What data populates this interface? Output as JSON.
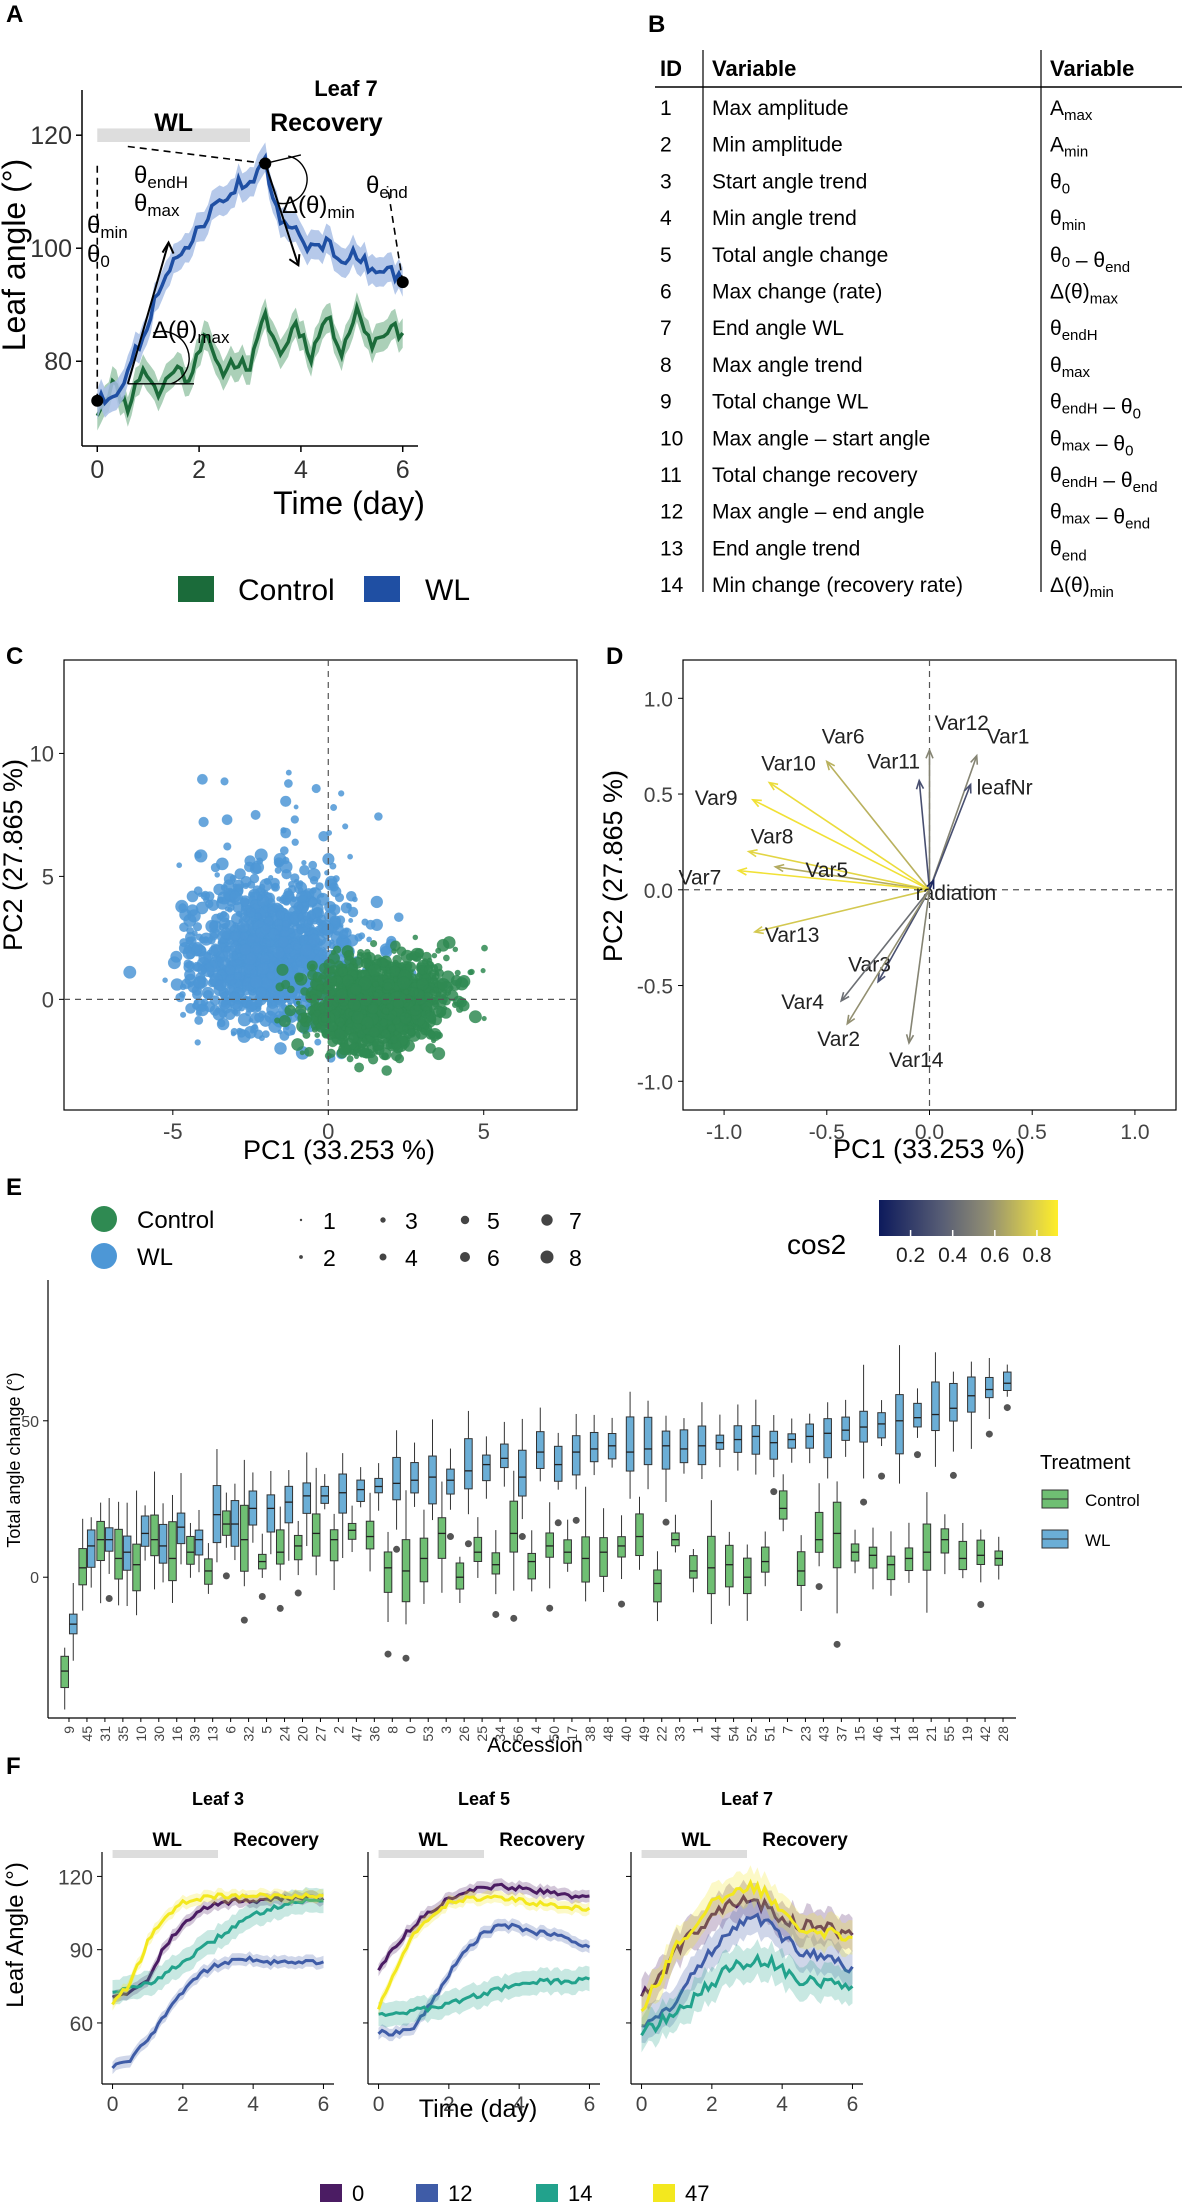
{
  "colors": {
    "control": "#1b6b3a",
    "wl": "#1f4fa3",
    "control_band": "#9cc8ab",
    "wl_band": "#a9c0e6",
    "pca_control": "#2f8a52",
    "pca_wl": "#4d97d6",
    "box_control": "#6fbf73",
    "box_wl": "#6baed6",
    "wl_bar": "#dddddd",
    "g0": "#4b1c63",
    "g12": "#3f5ca7",
    "g14": "#22a28c",
    "g47": "#f3e81e"
  },
  "panel_a": {
    "label": "A",
    "chart_data": {
      "type": "line",
      "title": "Leaf 7",
      "xlabel": "Time (day)",
      "ylabel": "Leaf angle (°)",
      "xlim": [
        -0.3,
        6.3
      ],
      "ylim": [
        65,
        128
      ],
      "xticks": [
        "0",
        "2",
        "4",
        "6"
      ],
      "yticks": [
        "80",
        "100",
        "120"
      ],
      "phase_labels": [
        "WL",
        "Recovery"
      ],
      "series": [
        {
          "name": "Control",
          "x": [
            0,
            0.3,
            0.6,
            0.9,
            1.2,
            1.5,
            1.8,
            2.1,
            2.4,
            2.7,
            3.0,
            3.3,
            3.6,
            3.9,
            4.2,
            4.5,
            4.8,
            5.1,
            5.4,
            5.7,
            6.0
          ],
          "y": [
            71,
            76,
            72,
            79,
            74,
            79,
            77,
            85,
            78,
            80,
            79,
            88,
            81,
            87,
            81,
            88,
            82,
            89,
            83,
            86,
            85
          ]
        },
        {
          "name": "WL",
          "x": [
            0,
            0.3,
            0.6,
            0.9,
            1.2,
            1.5,
            1.8,
            2.1,
            2.4,
            2.7,
            3.0,
            3.3,
            3.6,
            3.9,
            4.2,
            4.5,
            4.8,
            5.1,
            5.4,
            5.7,
            6.0
          ],
          "y": [
            73,
            74,
            78,
            85,
            92,
            97,
            101,
            105,
            108,
            111,
            112,
            115,
            104,
            103,
            100,
            101,
            98,
            99,
            96,
            97,
            94
          ]
        }
      ],
      "annotations": [
        "θmin",
        "θ0",
        "θendH",
        "θmax",
        "Δ(θ)max",
        "Δ(θ)min",
        "θend"
      ],
      "legend": [
        "Control",
        "WL"
      ],
      "legend_position": "bottom"
    }
  },
  "panel_b": {
    "label": "B",
    "headers": [
      "ID",
      "Variable",
      "Variable"
    ],
    "rows": [
      {
        "id": "1",
        "name": "Max amplitude",
        "symbol": "Amax"
      },
      {
        "id": "2",
        "name": "Min amplitude",
        "symbol": "Amin"
      },
      {
        "id": "3",
        "name": "Start angle trend",
        "symbol": "θ0"
      },
      {
        "id": "4",
        "name": "Min angle trend",
        "symbol": "θmin"
      },
      {
        "id": "5",
        "name": "Total angle change",
        "symbol": "θ0 – θend"
      },
      {
        "id": "6",
        "name": "Max change (rate)",
        "symbol": "Δ(θ)max"
      },
      {
        "id": "7",
        "name": "End angle WL",
        "symbol": "θendH"
      },
      {
        "id": "8",
        "name": "Max angle trend",
        "symbol": "θmax"
      },
      {
        "id": "9",
        "name": "Total change WL",
        "symbol": "θendH – θ0"
      },
      {
        "id": "10",
        "name": "Max angle – start angle",
        "symbol": "θmax – θ0"
      },
      {
        "id": "11",
        "name": "Total change recovery",
        "symbol": "θendH – θend"
      },
      {
        "id": "12",
        "name": "Max angle – end angle",
        "symbol": "θmax – θend"
      },
      {
        "id": "13",
        "name": "End angle trend",
        "symbol": "θend"
      },
      {
        "id": "14",
        "name": "Min change (recovery rate)",
        "symbol": "Δ(θ)min"
      }
    ]
  },
  "panel_c": {
    "label": "C",
    "chart_data": {
      "type": "scatter",
      "xlabel": "PC1 (33.253 %)",
      "ylabel": "PC2 (27.865 %)",
      "xlim": [
        -8.5,
        8
      ],
      "ylim": [
        -4.5,
        13.8
      ],
      "xticks": [
        "-5",
        "0",
        "5"
      ],
      "yticks": [
        "0",
        "5",
        "10"
      ],
      "series": [
        {
          "name": "Control",
          "center": [
            1.6,
            -0.3
          ],
          "spread": [
            1.8,
            1.5
          ],
          "approx_points": 2500
        },
        {
          "name": "WL",
          "center": [
            -1.8,
            1.8
          ],
          "spread": [
            2.3,
            2.5
          ],
          "approx_points": 2500
        }
      ],
      "legend": [
        "Control",
        "WL"
      ],
      "size_legend": [
        "1",
        "2",
        "3",
        "4",
        "5",
        "6",
        "7",
        "8"
      ]
    }
  },
  "panel_d": {
    "label": "D",
    "chart_data": {
      "type": "scatter",
      "subtype": "pca-variable-loadings",
      "xlabel": "PC1 (33.253 %)",
      "ylabel": "PC2 (27.865 %)",
      "xlim": [
        -1.2,
        1.2
      ],
      "ylim": [
        -1.15,
        1.2
      ],
      "xticks": [
        "-1.0",
        "-0.5",
        "0.0",
        "0.5",
        "1.0"
      ],
      "yticks": [
        "-1.0",
        "-0.5",
        "0.0",
        "0.5",
        "1.0"
      ],
      "colorbar_label": "cos2",
      "colorbar_ticks": [
        "0.2",
        "0.4",
        "0.6",
        "0.8"
      ],
      "vectors": [
        {
          "name": "Var1",
          "x": 0.23,
          "y": 0.7,
          "cos2": 0.55
        },
        {
          "name": "Var12",
          "x": 0.0,
          "y": 0.73,
          "cos2": 0.55
        },
        {
          "name": "Var11",
          "x": -0.05,
          "y": 0.57,
          "cos2": 0.3
        },
        {
          "name": "leafNr",
          "x": 0.2,
          "y": 0.55,
          "cos2": 0.3
        },
        {
          "name": "Var6",
          "x": -0.5,
          "y": 0.67,
          "cos2": 0.72
        },
        {
          "name": "Var10",
          "x": -0.78,
          "y": 0.56,
          "cos2": 0.88
        },
        {
          "name": "Var9",
          "x": -0.86,
          "y": 0.47,
          "cos2": 0.9
        },
        {
          "name": "Var8",
          "x": -0.88,
          "y": 0.2,
          "cos2": 0.85
        },
        {
          "name": "Var5",
          "x": -0.75,
          "y": 0.12,
          "cos2": 0.7
        },
        {
          "name": "Var7",
          "x": -0.93,
          "y": 0.1,
          "cos2": 0.9
        },
        {
          "name": "Var13",
          "x": -0.85,
          "y": -0.22,
          "cos2": 0.8
        },
        {
          "name": "radiation",
          "x": 0.02,
          "y": 0.05,
          "cos2": 0.1
        },
        {
          "name": "Var3",
          "x": -0.25,
          "y": -0.48,
          "cos2": 0.3
        },
        {
          "name": "Var4",
          "x": -0.43,
          "y": -0.58,
          "cos2": 0.45
        },
        {
          "name": "Var2",
          "x": -0.4,
          "y": -0.7,
          "cos2": 0.6
        },
        {
          "name": "Var14",
          "x": -0.1,
          "y": -0.8,
          "cos2": 0.55
        }
      ]
    }
  },
  "panel_e": {
    "label": "E",
    "chart_data": {
      "type": "box",
      "xlabel": "Accession",
      "ylabel": "Total angle change (°)",
      "ylim": [
        -45,
        95
      ],
      "yticks": [
        "0",
        "50"
      ],
      "legend_title": "Treatment",
      "legend": [
        "Control",
        "WL"
      ],
      "categories": [
        "9",
        "45",
        "31",
        "35",
        "10",
        "30",
        "16",
        "39",
        "13",
        "6",
        "32",
        "5",
        "24",
        "20",
        "27",
        "2",
        "47",
        "36",
        "8",
        "0",
        "53",
        "3",
        "26",
        "25",
        "34",
        "56",
        "4",
        "50",
        "17",
        "38",
        "48",
        "40",
        "49",
        "22",
        "33",
        "1",
        "44",
        "54",
        "52",
        "51",
        "7",
        "23",
        "43",
        "37",
        "15",
        "46",
        "14",
        "18",
        "21",
        "55",
        "19",
        "42",
        "28"
      ],
      "series": [
        {
          "name": "Control",
          "medians": [
            -30,
            3,
            12,
            6,
            4,
            12,
            6,
            8,
            2,
            17,
            12,
            5,
            8,
            10,
            14,
            12,
            15,
            13,
            3,
            2,
            6,
            14,
            0,
            8,
            4,
            14,
            5,
            10,
            8,
            6,
            8,
            10,
            13,
            -2,
            12,
            2,
            3,
            4,
            0,
            5,
            22,
            2,
            12,
            14,
            8,
            7,
            4,
            6,
            8,
            12,
            6,
            7,
            6
          ]
        },
        {
          "name": "WL",
          "medians": [
            -15,
            10,
            12,
            8,
            14,
            10,
            16,
            12,
            20,
            17,
            22,
            22,
            24,
            26,
            26,
            27,
            28,
            29,
            30,
            31,
            32,
            31,
            34,
            36,
            38,
            32,
            40,
            36,
            40,
            41,
            42,
            40,
            41,
            42,
            41,
            42,
            43,
            44,
            45,
            43,
            44,
            45,
            46,
            47,
            48,
            49,
            50,
            51,
            52,
            54,
            58,
            60,
            62
          ]
        }
      ]
    }
  },
  "panel_f": {
    "label": "F",
    "chart_data": {
      "type": "line",
      "xlabel": "Time (day)",
      "ylabel": "Leaf Angle (°)",
      "xlim": [
        -0.3,
        6.3
      ],
      "ylim": [
        35,
        130
      ],
      "xticks": [
        "0",
        "2",
        "4",
        "6"
      ],
      "yticks": [
        "60",
        "90",
        "120"
      ],
      "phase_labels": [
        "WL",
        "Recovery"
      ],
      "legend": [
        "0",
        "12",
        "14",
        "47"
      ],
      "facets": [
        {
          "title": "Leaf 3",
          "x": [
            0,
            0.5,
            1,
            1.5,
            2,
            2.5,
            3,
            3.5,
            4,
            4.5,
            5,
            5.5,
            6
          ],
          "series": [
            {
              "name": "0",
              "y": [
                71,
                73,
                78,
                92,
                100,
                106,
                109,
                110,
                110,
                111,
                111,
                111,
                111
              ]
            },
            {
              "name": "12",
              "y": [
                42,
                45,
                53,
                63,
                73,
                80,
                84,
                86,
                86,
                85,
                85,
                85,
                85
              ]
            },
            {
              "name": "14",
              "y": [
                73,
                74,
                76,
                80,
                85,
                90,
                95,
                100,
                104,
                107,
                109,
                110,
                110
              ]
            },
            {
              "name": "47",
              "y": [
                68,
                76,
                93,
                104,
                109,
                111,
                112,
                112,
                112,
                112,
                112,
                112,
                112
              ]
            }
          ]
        },
        {
          "title": "Leaf 5",
          "x": [
            0,
            0.5,
            1,
            1.5,
            2,
            2.5,
            3,
            3.5,
            4,
            4.5,
            5,
            5.5,
            6
          ],
          "series": [
            {
              "name": "0",
              "y": [
                82,
                92,
                100,
                106,
                111,
                114,
                115,
                116,
                115,
                114,
                113,
                112,
                112
              ]
            },
            {
              "name": "12",
              "y": [
                56,
                56,
                58,
                68,
                80,
                90,
                97,
                100,
                99,
                97,
                96,
                94,
                91
              ]
            },
            {
              "name": "14",
              "y": [
                64,
                64,
                65,
                66,
                68,
                70,
                72,
                74,
                76,
                77,
                77,
                77,
                78
              ]
            },
            {
              "name": "47",
              "y": [
                66,
                82,
                96,
                104,
                109,
                111,
                111,
                111,
                110,
                109,
                108,
                107,
                107
              ]
            }
          ]
        },
        {
          "title": "Leaf 7",
          "x": [
            0,
            0.5,
            1,
            1.5,
            2,
            2.5,
            3,
            3.5,
            4,
            4.5,
            5,
            5.5,
            6
          ],
          "series": [
            {
              "name": "0",
              "y": [
                72,
                78,
                90,
                98,
                104,
                108,
                110,
                108,
                103,
                100,
                100,
                98,
                96
              ]
            },
            {
              "name": "12",
              "y": [
                60,
                62,
                70,
                80,
                90,
                98,
                104,
                102,
                95,
                90,
                87,
                85,
                83
              ]
            },
            {
              "name": "14",
              "y": [
                56,
                60,
                64,
                70,
                76,
                82,
                85,
                86,
                82,
                78,
                77,
                76,
                75
              ]
            },
            {
              "name": "47",
              "y": [
                66,
                78,
                92,
                100,
                108,
                112,
                116,
                114,
                106,
                100,
                98,
                97,
                95
              ]
            }
          ]
        }
      ]
    }
  }
}
